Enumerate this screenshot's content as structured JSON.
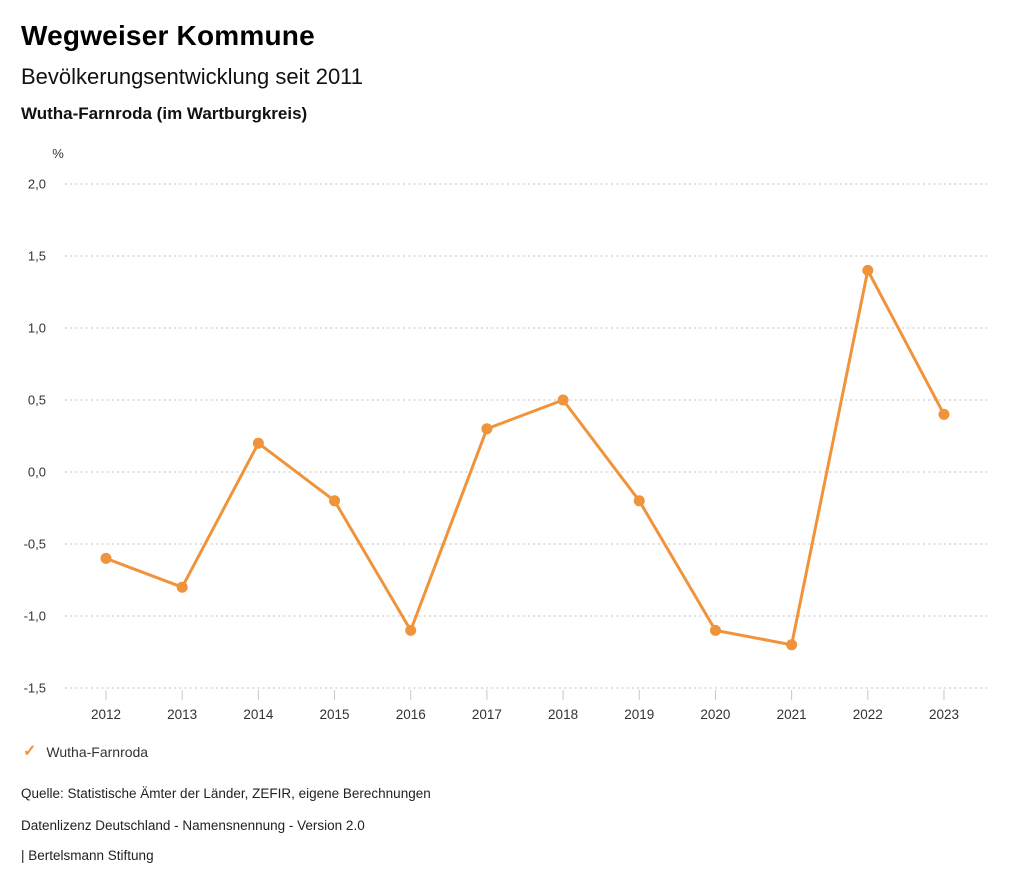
{
  "header": {
    "title": "Wegweiser Kommune",
    "subtitle": "Bevölkerungsentwicklung seit 2011",
    "region": "Wutha-Farnroda (im Wartburgkreis)"
  },
  "chart_data": {
    "type": "line",
    "title": "Bevölkerungsentwicklung seit 2011",
    "unit_label": "%",
    "categories": [
      "2012",
      "2013",
      "2014",
      "2015",
      "2016",
      "2017",
      "2018",
      "2019",
      "2020",
      "2021",
      "2022",
      "2023"
    ],
    "series": [
      {
        "name": "Wutha-Farnroda",
        "color": "#F0943C",
        "values": [
          -0.6,
          -0.8,
          0.2,
          -0.2,
          -1.1,
          0.3,
          0.5,
          -0.2,
          -1.1,
          -1.2,
          1.4,
          0.4
        ]
      }
    ],
    "ylim": [
      -1.5,
      2.0
    ],
    "ytick_step": 0.5,
    "ytick_labels": [
      "2,0",
      "1,5",
      "1,0",
      "0,5",
      "0,0",
      "-0,5",
      "-1,0",
      "-1,5"
    ],
    "grid": "horizontal-dotted",
    "legend_position": "bottom-left"
  },
  "legend": {
    "items": [
      {
        "label": "Wutha-Farnroda",
        "color": "#F0943C",
        "icon": "check"
      }
    ]
  },
  "footer": {
    "source": "Quelle: Statistische Ämter der Länder, ZEFIR, eigene Berechnungen",
    "license": "Datenlizenz Deutschland - Namensnennung - Version 2.0",
    "attribution": "| Bertelsmann Stiftung"
  },
  "colors": {
    "line": "#F0943C",
    "grid": "#bdbdbd",
    "tick": "#c8c8c8",
    "axis_text": "#333333"
  }
}
